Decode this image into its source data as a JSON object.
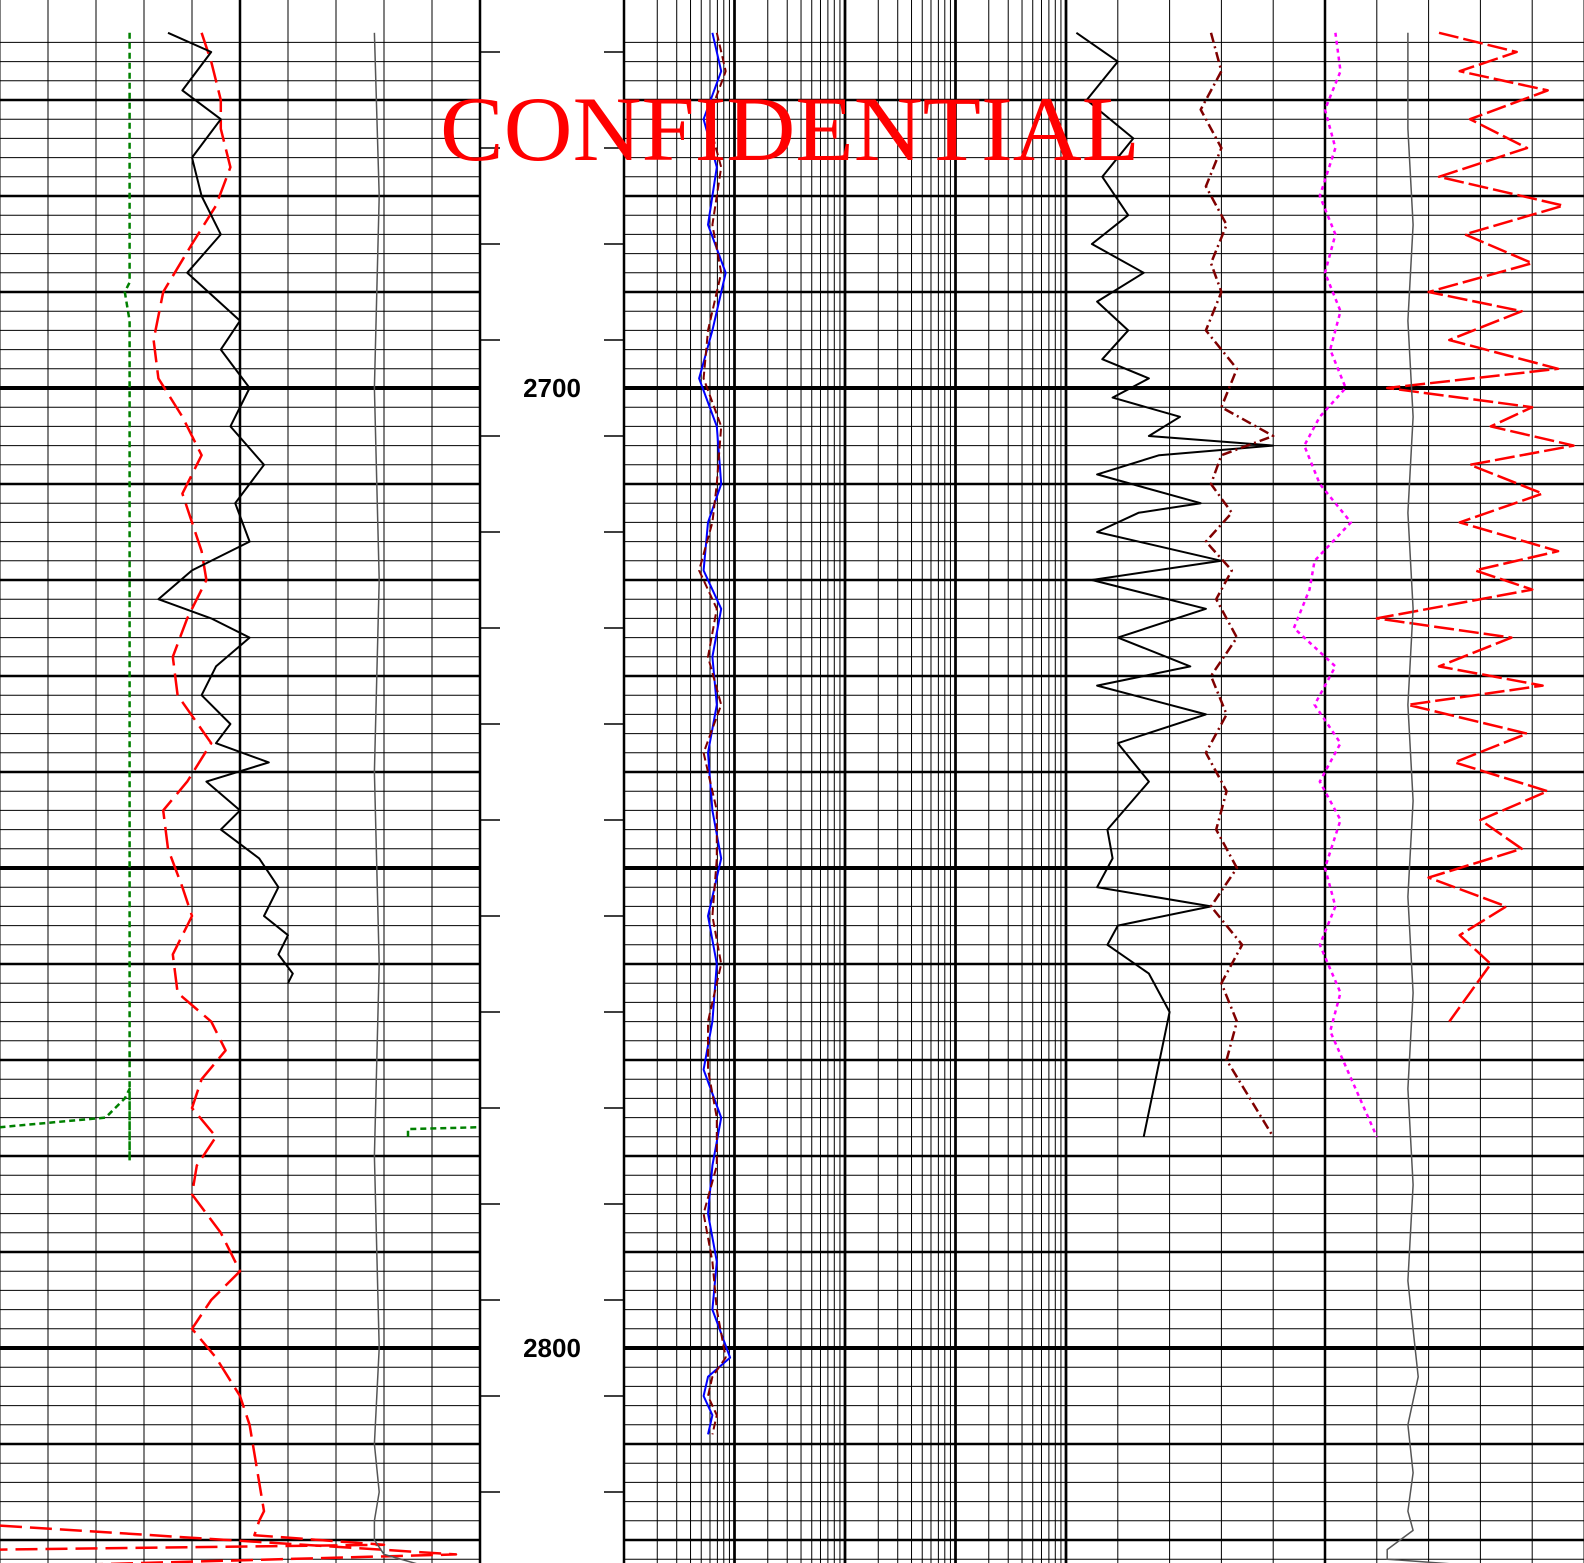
{
  "watermark": "CONFIDENTIAL",
  "chart_data": {
    "type": "line",
    "title": "",
    "depth_axis": {
      "range": [
        2663,
        2826
      ],
      "labels": [
        2700,
        2800
      ],
      "major_step": 10,
      "minor_step": 2
    },
    "colors": {
      "grid": "#000000",
      "green": "#008000",
      "red": "#ff0000",
      "black": "#000000",
      "blue": "#0000ff",
      "maroon": "#800000",
      "magenta": "#ff00ff",
      "gray": "#555555"
    },
    "tracks": [
      {
        "name": "track-1",
        "scale": "linear",
        "series": [
          {
            "color": "green",
            "dash": "6,4",
            "width": 2.5,
            "x": [
              0.27,
              0.27,
              0.27,
              0.26,
              0.27,
              0.27,
              0.27,
              0.27,
              0.27,
              0.27,
              0.27,
              0.27,
              0.27,
              0.26,
              0.22,
              0.0
            ],
            "depth": [
              2663,
              2680,
              2689,
              2690,
              2693,
              2700,
              2720,
              2740,
              2760,
              2770,
              2780,
              2780.5,
              2773,
              2774,
              2776,
              2777
            ]
          },
          {
            "color": "green",
            "dash": "6,4",
            "width": 2.5,
            "x": [
              0.85,
              0.85,
              1.0
            ],
            "depth": [
              2778,
              2777.2,
              2777
            ]
          },
          {
            "color": "red",
            "dash": "22,8",
            "width": 2.5,
            "x": [
              0.42,
              0.44,
              0.46,
              0.46,
              0.48,
              0.45,
              0.4,
              0.34,
              0.32,
              0.33,
              0.38,
              0.42,
              0.38,
              0.4,
              0.42,
              0.43,
              0.39,
              0.36,
              0.37,
              0.44,
              0.39,
              0.34,
              0.35,
              0.38,
              0.4,
              0.36,
              0.37,
              0.44,
              0.47,
              0.42,
              0.4,
              0.45,
              0.41,
              0.4,
              0.46,
              0.5,
              0.44,
              0.4,
              0.45,
              0.5,
              0.52,
              0.53,
              0.54,
              0.55,
              0.54,
              0.53,
              0.8,
              0.0
            ],
            "depth": [
              2663,
              2666,
              2670,
              2673,
              2677,
              2681,
              2685,
              2690,
              2695,
              2699,
              2703,
              2707,
              2711,
              2714,
              2717,
              2720,
              2724,
              2728,
              2732,
              2737,
              2741,
              2744,
              2748,
              2752,
              2755,
              2759,
              2763,
              2766,
              2769,
              2772,
              2775,
              2778,
              2781,
              2784,
              2788,
              2792,
              2795,
              2798,
              2801,
              2805,
              2808,
              2811,
              2814,
              2817,
              2818,
              2819.5,
              2820.5,
              2821
            ]
          },
          {
            "color": "red",
            "dash": "22,8",
            "width": 2.5,
            "x": [
              0.0,
              0.95,
              0.0
            ],
            "depth": [
              2818.5,
              2821.5,
              2822.8
            ]
          },
          {
            "color": "black",
            "dash": "",
            "width": 2,
            "x": [
              0.35,
              0.44,
              0.38,
              0.46,
              0.4,
              0.42,
              0.46,
              0.39,
              0.5,
              0.46,
              0.52,
              0.48,
              0.55,
              0.49,
              0.52,
              0.4,
              0.33,
              0.44,
              0.52,
              0.45,
              0.42,
              0.48,
              0.45,
              0.56,
              0.43,
              0.5,
              0.46,
              0.54,
              0.58,
              0.55,
              0.6,
              0.58,
              0.61,
              0.6
            ],
            "depth": [
              2663,
              2665,
              2669,
              2672,
              2676,
              2680,
              2684,
              2688,
              2693,
              2696,
              2700,
              2704,
              2708,
              2712,
              2716,
              2719,
              2722,
              2724,
              2726,
              2729,
              2732,
              2735,
              2737,
              2739,
              2741,
              2744,
              2746,
              2749,
              2752,
              2755,
              2757,
              2759,
              2761,
              2762
            ]
          },
          {
            "color": "gray",
            "dash": "",
            "width": 1.5,
            "x": [
              0.78,
              0.79,
              0.78,
              0.79,
              0.78,
              0.79,
              0.78,
              0.79,
              0.78,
              0.79,
              0.78,
              0.78,
              0.8,
              0.87,
              0.92,
              0.93
            ],
            "depth": [
              2663,
              2680,
              2700,
              2720,
              2740,
              2760,
              2780,
              2800,
              2810,
              2815,
              2818,
              2820,
              2821.5,
              2822.5,
              2823,
              2826
            ]
          }
        ]
      },
      {
        "name": "track-2",
        "scale": "log",
        "decades": 4,
        "series": [
          {
            "color": "blue",
            "dash": "",
            "width": 2,
            "logx": [
              0.2,
              0.22,
              0.18,
              0.21,
              0.19,
              0.23,
              0.2,
              0.17,
              0.21,
              0.22,
              0.19,
              0.18,
              0.22,
              0.2,
              0.21,
              0.19,
              0.2,
              0.22,
              0.19,
              0.21,
              0.2,
              0.18,
              0.22,
              0.2,
              0.19,
              0.21,
              0.2,
              0.24,
              0.19,
              0.18,
              0.2,
              0.19
            ],
            "depth": [
              2663,
              2667,
              2672,
              2677,
              2683,
              2688,
              2694,
              2699,
              2704,
              2710,
              2714,
              2719,
              2723,
              2728,
              2733,
              2738,
              2744,
              2749,
              2755,
              2760,
              2766,
              2771,
              2776,
              2781,
              2786,
              2791,
              2796,
              2801,
              2803,
              2805,
              2807,
              2809
            ]
          },
          {
            "color": "maroon",
            "dash": "8,4",
            "width": 2,
            "logx": [
              0.21,
              0.23,
              0.19,
              0.22,
              0.2,
              0.22,
              0.19,
              0.18,
              0.22,
              0.21,
              0.2,
              0.17,
              0.21,
              0.19,
              0.22,
              0.18,
              0.21,
              0.21,
              0.2,
              0.22,
              0.19,
              0.19,
              0.21,
              0.21,
              0.18,
              0.2,
              0.21,
              0.23,
              0.2,
              0.19,
              0.21,
              0.2
            ],
            "depth": [
              2663,
              2667,
              2672,
              2677,
              2683,
              2688,
              2694,
              2699,
              2704,
              2710,
              2714,
              2719,
              2723,
              2728,
              2733,
              2738,
              2744,
              2749,
              2755,
              2760,
              2766,
              2771,
              2776,
              2781,
              2786,
              2791,
              2796,
              2801,
              2803,
              2805,
              2807,
              2809
            ]
          }
        ]
      },
      {
        "name": "track-3",
        "scale": "linear",
        "series": [
          {
            "color": "black",
            "dash": "",
            "width": 2,
            "x": [
              0.02,
              0.1,
              0.04,
              0.13,
              0.07,
              0.12,
              0.05,
              0.15,
              0.06,
              0.12,
              0.07,
              0.16,
              0.09,
              0.22,
              0.16,
              0.4,
              0.18,
              0.06,
              0.26,
              0.14,
              0.06,
              0.3,
              0.05,
              0.27,
              0.1,
              0.24,
              0.06,
              0.27,
              0.1,
              0.16,
              0.08,
              0.09,
              0.06,
              0.28,
              0.1,
              0.08,
              0.16,
              0.2,
              0.15
            ],
            "depth": [
              2663,
              2666,
              2670,
              2674,
              2678,
              2682,
              2685,
              2688,
              2691,
              2694,
              2697,
              2699,
              2701,
              2703,
              2705,
              2706,
              2707,
              2709,
              2712,
              2713,
              2715,
              2718,
              2720,
              2723,
              2726,
              2729,
              2731,
              2734,
              2737,
              2741,
              2746,
              2749,
              2752,
              2754,
              2756,
              2758,
              2761,
              2765,
              2778
            ]
          },
          {
            "color": "maroon",
            "dash": "10,4,2,4",
            "width": 2.5,
            "x": [
              0.28,
              0.3,
              0.26,
              0.3,
              0.27,
              0.31,
              0.28,
              0.3,
              0.27,
              0.33,
              0.3,
              0.4,
              0.3,
              0.28,
              0.32,
              0.27,
              0.32,
              0.29,
              0.33,
              0.28,
              0.31,
              0.27,
              0.31,
              0.29,
              0.33,
              0.28,
              0.34,
              0.3,
              0.33,
              0.31,
              0.4
            ],
            "depth": [
              2663,
              2667,
              2671,
              2675,
              2679,
              2683,
              2687,
              2690,
              2694,
              2698,
              2702,
              2705,
              2707,
              2710,
              2713,
              2716,
              2719,
              2722,
              2726,
              2730,
              2734,
              2738,
              2742,
              2746,
              2750,
              2754,
              2758,
              2762,
              2766,
              2770,
              2778
            ]
          },
          {
            "color": "magenta",
            "dash": "4,4",
            "width": 2.5,
            "x": [
              0.52,
              0.53,
              0.5,
              0.52,
              0.49,
              0.52,
              0.5,
              0.53,
              0.51,
              0.54,
              0.49,
              0.46,
              0.49,
              0.55,
              0.48,
              0.47,
              0.44,
              0.52,
              0.48,
              0.53,
              0.49,
              0.53,
              0.5,
              0.52,
              0.49,
              0.53,
              0.51,
              0.6
            ],
            "depth": [
              2663,
              2667,
              2671,
              2675,
              2680,
              2684,
              2688,
              2692,
              2696,
              2700,
              2703,
              2706,
              2710,
              2714,
              2718,
              2721,
              2725,
              2729,
              2733,
              2737,
              2741,
              2745,
              2750,
              2754,
              2758,
              2763,
              2767,
              2778
            ]
          },
          {
            "color": "red",
            "dash": "20,5",
            "width": 2.5,
            "x": [
              0.72,
              0.87,
              0.76,
              0.93,
              0.78,
              0.89,
              0.72,
              0.96,
              0.77,
              0.9,
              0.7,
              0.88,
              0.74,
              0.95,
              0.62,
              0.9,
              0.82,
              0.98,
              0.78,
              0.92,
              0.76,
              0.95,
              0.79,
              0.9,
              0.6,
              0.86,
              0.72,
              0.92,
              0.66,
              0.89,
              0.75,
              0.93,
              0.8,
              0.88,
              0.7,
              0.85,
              0.76,
              0.82,
              0.78,
              0.74
            ],
            "depth": [
              2663,
              2665,
              2667,
              2669,
              2672,
              2675,
              2678,
              2681,
              2684,
              2687,
              2690,
              2692,
              2695,
              2698,
              2700,
              2702,
              2704,
              2706,
              2708,
              2711,
              2714,
              2717,
              2719,
              2721,
              2724,
              2726,
              2729,
              2731,
              2733,
              2736,
              2739,
              2742,
              2745,
              2748,
              2751,
              2754,
              2757,
              2760,
              2763,
              2766
            ]
          },
          {
            "color": "gray",
            "dash": "",
            "width": 1.5,
            "x": [
              0.66,
              0.66,
              0.67,
              0.66,
              0.67,
              0.66,
              0.67,
              0.66,
              0.67,
              0.66,
              0.67,
              0.66,
              0.67,
              0.66,
              0.68,
              0.66,
              0.67,
              0.66,
              0.67,
              0.62,
              0.62,
              1.0
            ],
            "depth": [
              2663,
              2673,
              2683,
              2693,
              2703,
              2713,
              2723,
              2733,
              2743,
              2753,
              2763,
              2773,
              2783,
              2793,
              2803,
              2808,
              2813,
              2817,
              2819,
              2821,
              2822,
              2823.5
            ]
          }
        ]
      }
    ]
  }
}
